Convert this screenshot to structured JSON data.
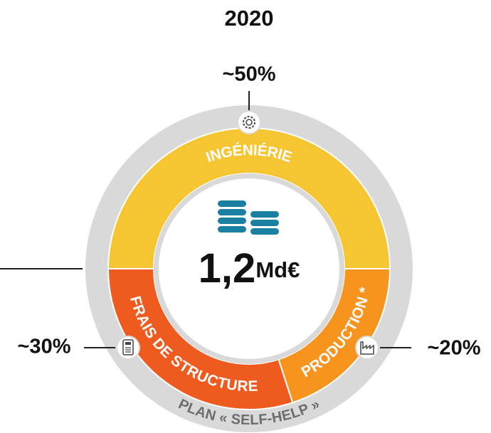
{
  "chart_data": {
    "type": "pie",
    "title": "2020",
    "center_value": "1,2",
    "center_unit": "Md€",
    "ring_label": "PLAN « SELF-HELP »",
    "start_angle": 270,
    "categories": [
      "INGÉNIÉRIE",
      "PRODUCTION *",
      "FRAIS DE STRUCTURE"
    ],
    "values": [
      50,
      20,
      30
    ],
    "value_labels": [
      "~50%",
      "~20%",
      "~30%"
    ],
    "colors": [
      "#f6c532",
      "#f7941d",
      "#ef5a1e"
    ]
  }
}
